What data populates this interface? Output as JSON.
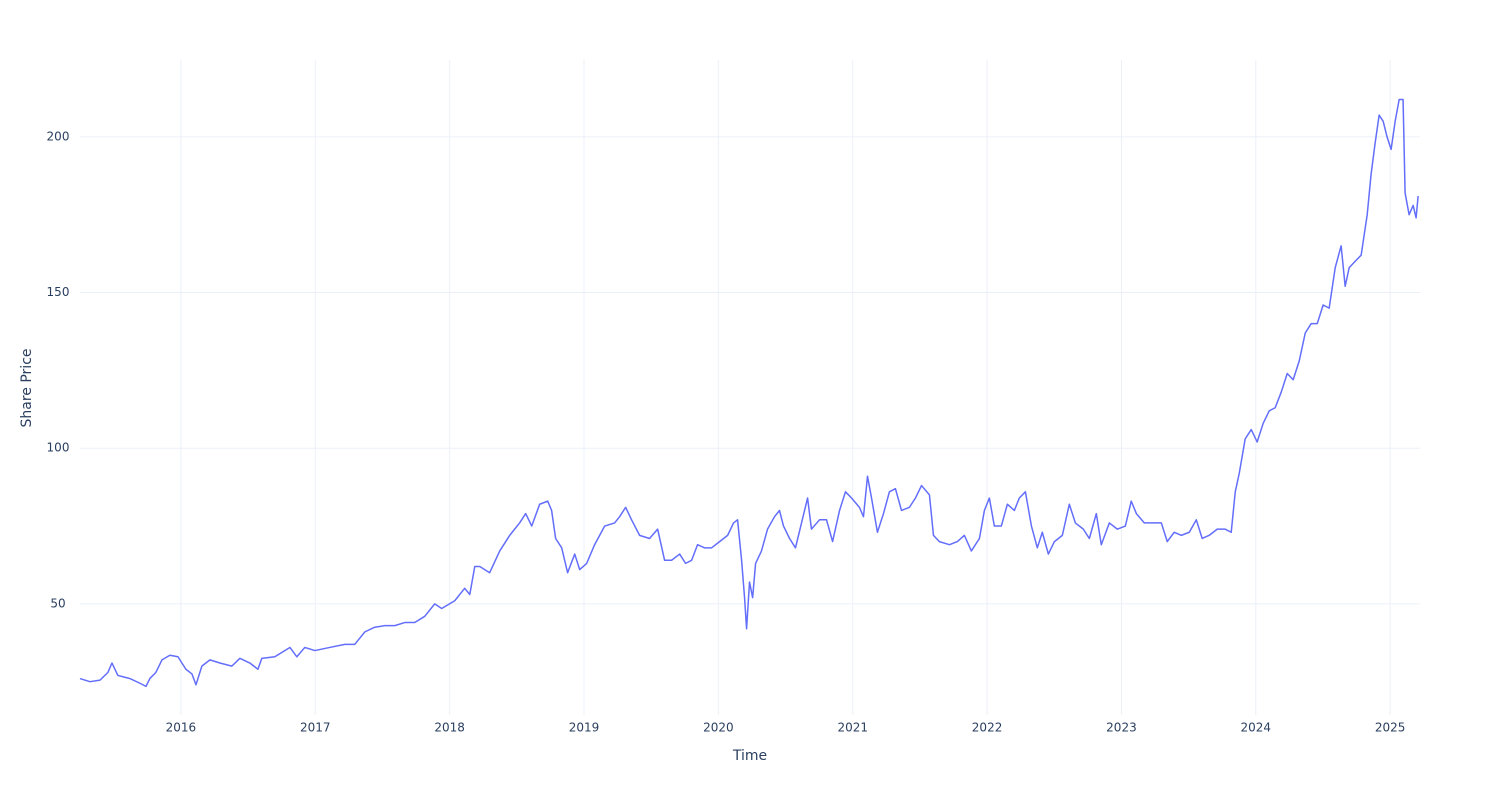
{
  "chart_data": {
    "type": "line",
    "xlabel": "Time",
    "ylabel": "Share Price",
    "color": "#636efa",
    "grid": true,
    "xlim": [
      2015.249,
      2025.222
    ],
    "ylim": [
      14.3,
      224.7
    ],
    "xticks": [
      2016,
      2017,
      2018,
      2019,
      2020,
      2021,
      2022,
      2023,
      2024,
      2025
    ],
    "yticks": [
      50,
      100,
      150,
      200
    ],
    "x": [
      2015.249,
      2015.323,
      2015.398,
      2015.457,
      2015.487,
      2015.531,
      2015.621,
      2015.695,
      2015.74,
      2015.769,
      2015.814,
      2015.859,
      2015.918,
      2015.978,
      2016.037,
      2016.082,
      2016.112,
      2016.156,
      2016.216,
      2016.29,
      2016.379,
      2016.439,
      2016.513,
      2016.573,
      2016.602,
      2016.699,
      2016.811,
      2016.863,
      2016.922,
      2016.997,
      2017.108,
      2017.22,
      2017.294,
      2017.369,
      2017.443,
      2017.517,
      2017.592,
      2017.666,
      2017.74,
      2017.815,
      2017.889,
      2017.941,
      2018.038,
      2018.112,
      2018.15,
      2018.187,
      2018.224,
      2018.298,
      2018.373,
      2018.447,
      2018.484,
      2018.521,
      2018.566,
      2018.611,
      2018.67,
      2018.73,
      2018.759,
      2018.789,
      2018.834,
      2018.878,
      2018.931,
      2018.968,
      2019.02,
      2019.079,
      2019.154,
      2019.228,
      2019.265,
      2019.31,
      2019.354,
      2019.414,
      2019.488,
      2019.548,
      2019.6,
      2019.652,
      2019.712,
      2019.756,
      2019.801,
      2019.845,
      2019.897,
      2019.95,
      2020.009,
      2020.069,
      2020.113,
      2020.143,
      2020.173,
      2020.195,
      2020.21,
      2020.232,
      2020.255,
      2020.277,
      2020.321,
      2020.366,
      2020.418,
      2020.455,
      2020.485,
      2020.53,
      2020.574,
      2020.619,
      2020.664,
      2020.693,
      2020.753,
      2020.805,
      2020.85,
      2020.902,
      2020.946,
      2020.991,
      2021.05,
      2021.08,
      2021.11,
      2021.14,
      2021.184,
      2021.229,
      2021.273,
      2021.318,
      2021.363,
      2021.422,
      2021.467,
      2021.512,
      2021.571,
      2021.601,
      2021.645,
      2021.72,
      2021.779,
      2021.831,
      2021.883,
      2021.943,
      2021.98,
      2022.017,
      2022.054,
      2022.106,
      2022.151,
      2022.203,
      2022.24,
      2022.285,
      2022.33,
      2022.374,
      2022.411,
      2022.456,
      2022.501,
      2022.56,
      2022.612,
      2022.657,
      2022.716,
      2022.761,
      2022.813,
      2022.85,
      2022.91,
      2022.969,
      2023.029,
      2023.073,
      2023.111,
      2023.17,
      2023.244,
      2023.297,
      2023.341,
      2023.393,
      2023.445,
      2023.505,
      2023.557,
      2023.601,
      2023.653,
      2023.713,
      2023.772,
      2023.817,
      2023.847,
      2023.877,
      2023.921,
      2023.966,
      2024.01,
      2024.055,
      2024.1,
      2024.144,
      2024.189,
      2024.234,
      2024.278,
      2024.323,
      2024.368,
      2024.412,
      2024.457,
      2024.501,
      2024.546,
      2024.591,
      2024.635,
      2024.665,
      2024.695,
      2024.739,
      2024.784,
      2024.829,
      2024.858,
      2024.888,
      2024.918,
      2024.948,
      2024.977,
      2025.007,
      2025.037,
      2025.067,
      2025.096,
      2025.111,
      2025.141,
      2025.171,
      2025.193,
      2025.208
    ],
    "values": [
      26,
      25,
      25.5,
      28,
      31,
      27,
      26,
      24.5,
      23.5,
      26,
      28,
      32,
      33.5,
      33,
      29,
      27.5,
      24,
      30,
      32,
      31,
      30,
      32.5,
      31,
      29,
      32.5,
      33,
      36,
      33,
      36,
      35,
      36,
      37,
      37,
      41,
      42.5,
      43,
      43,
      44,
      44,
      46,
      50,
      48.5,
      51,
      55,
      53,
      62,
      62,
      60,
      67,
      72,
      74,
      76,
      79,
      75,
      82,
      83,
      80,
      71,
      68,
      60,
      66,
      61,
      63,
      69,
      75,
      76,
      78,
      81,
      77,
      72,
      71,
      74,
      64,
      64,
      66,
      63,
      64,
      69,
      68,
      68,
      70,
      72,
      76,
      77,
      64,
      52,
      42,
      57,
      52,
      63,
      67,
      74,
      78,
      80,
      75,
      71,
      68,
      76,
      84,
      74,
      77,
      77,
      70,
      80,
      86,
      84,
      81,
      78,
      91,
      84,
      73,
      79,
      86,
      87,
      80,
      81,
      84,
      88,
      85,
      72,
      70,
      69,
      70,
      72,
      67,
      71,
      80,
      84,
      75,
      75,
      82,
      80,
      84,
      86,
      75,
      68,
      73,
      66,
      70,
      72,
      82,
      76,
      74,
      71,
      79,
      69,
      76,
      74,
      75,
      83,
      79,
      76,
      76,
      76,
      70,
      73,
      72,
      73,
      77,
      71,
      72,
      74,
      74,
      73,
      86,
      92,
      103,
      106,
      102,
      108,
      112,
      113,
      118,
      124,
      122,
      128,
      137,
      140,
      140,
      146,
      145,
      158,
      165,
      152,
      158,
      160,
      162,
      175,
      188,
      198,
      207,
      205,
      200,
      196,
      205,
      212,
      212,
      182,
      175,
      178,
      174,
      181
    ]
  }
}
